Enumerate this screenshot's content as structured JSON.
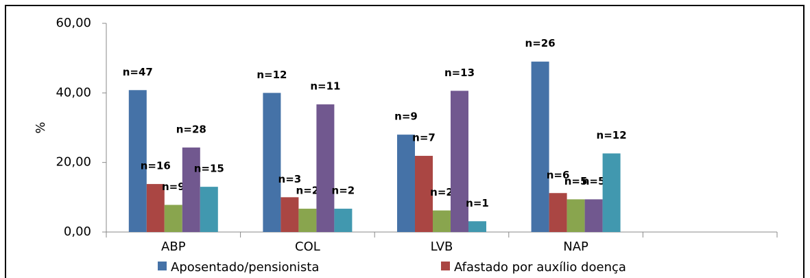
{
  "chart_data": {
    "type": "bar",
    "y_label": "%",
    "categories": [
      "ABP",
      "COL",
      "LVB",
      "NAP",
      null
    ],
    "series": [
      {
        "name": "Aposentado/pensionista",
        "color": "#4572a7",
        "values": [
          40.8,
          40,
          28,
          49,
          null
        ],
        "labels": [
          "n=47",
          "n=12",
          "n=9",
          "n=26",
          null
        ]
      },
      {
        "name": "Afastado por auxílio doença",
        "color": "#aa4643",
        "values": [
          13.8,
          10,
          21.9,
          11.2,
          null
        ],
        "labels": [
          "n=16",
          "n=3",
          "n=7",
          "n=6",
          null
        ]
      },
      {
        "color": "#89a54e",
        "values": [
          7.8,
          6.7,
          6.2,
          9.4,
          null
        ],
        "labels": [
          "n=9",
          "n=2",
          "n=2",
          "n=5",
          null
        ]
      },
      {
        "color": "#71588f",
        "values": [
          24.3,
          36.7,
          40.6,
          9.4,
          null
        ],
        "labels": [
          "n=28",
          "n=11",
          "n=13",
          "n=5",
          null
        ]
      },
      {
        "color": "#4198af",
        "values": [
          13,
          6.7,
          3.1,
          22.6,
          null
        ],
        "labels": [
          "n=15",
          "n=2",
          "n=1",
          "n=12",
          null
        ]
      }
    ],
    "ylim": [
      0,
      60
    ],
    "yticks": [
      {
        "value": 0,
        "label": "0,00"
      },
      {
        "value": 20,
        "label": "20,00"
      },
      {
        "value": 40,
        "label": "40,00"
      },
      {
        "value": 60,
        "label": "60,00"
      }
    ],
    "grid": false
  }
}
